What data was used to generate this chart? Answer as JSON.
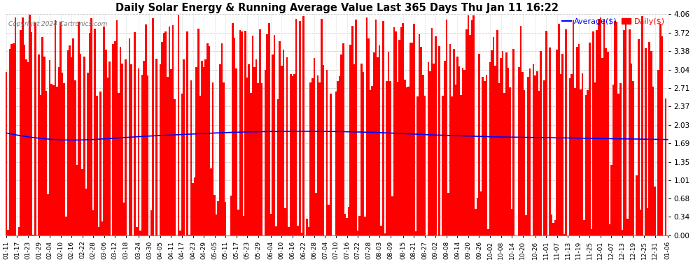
{
  "title": "Daily Solar Energy & Running Average Value Last 365 Days Thu Jan 11 16:22",
  "copyright": "Copyright 2024 Cartronics.com",
  "legend_avg": "Average($)",
  "legend_daily": "Daily($)",
  "avg_color": "#0000ff",
  "daily_color": "#ff0000",
  "background_color": "#ffffff",
  "grid_color": "#bbbbbb",
  "ylim": [
    0.0,
    4.06
  ],
  "yticks": [
    0.0,
    0.34,
    0.68,
    1.01,
    1.35,
    1.69,
    2.03,
    2.37,
    2.71,
    3.04,
    3.38,
    3.72,
    4.06
  ],
  "x_labels": [
    "01-11",
    "01-17",
    "01-23",
    "01-29",
    "02-04",
    "02-10",
    "02-16",
    "02-22",
    "02-28",
    "03-06",
    "03-12",
    "03-18",
    "03-24",
    "03-30",
    "04-05",
    "04-11",
    "04-17",
    "04-23",
    "04-29",
    "05-05",
    "05-11",
    "05-17",
    "05-23",
    "05-29",
    "06-04",
    "06-10",
    "06-16",
    "06-22",
    "06-28",
    "07-04",
    "07-10",
    "07-16",
    "07-22",
    "07-28",
    "08-03",
    "08-09",
    "08-15",
    "08-21",
    "08-27",
    "09-02",
    "09-08",
    "09-14",
    "09-20",
    "09-26",
    "10-02",
    "10-08",
    "10-14",
    "10-20",
    "10-26",
    "11-01",
    "11-07",
    "11-13",
    "11-19",
    "11-25",
    "12-01",
    "12-07",
    "12-13",
    "12-19",
    "12-25",
    "12-31",
    "01-06"
  ],
  "n_days": 366,
  "avg_values_knots": [
    1.88,
    1.78,
    1.75,
    1.78,
    1.82,
    1.85,
    1.88,
    1.9,
    1.91,
    1.91,
    1.9,
    1.88,
    1.85,
    1.83,
    1.81,
    1.8,
    1.79,
    1.78,
    1.77,
    1.76
  ]
}
